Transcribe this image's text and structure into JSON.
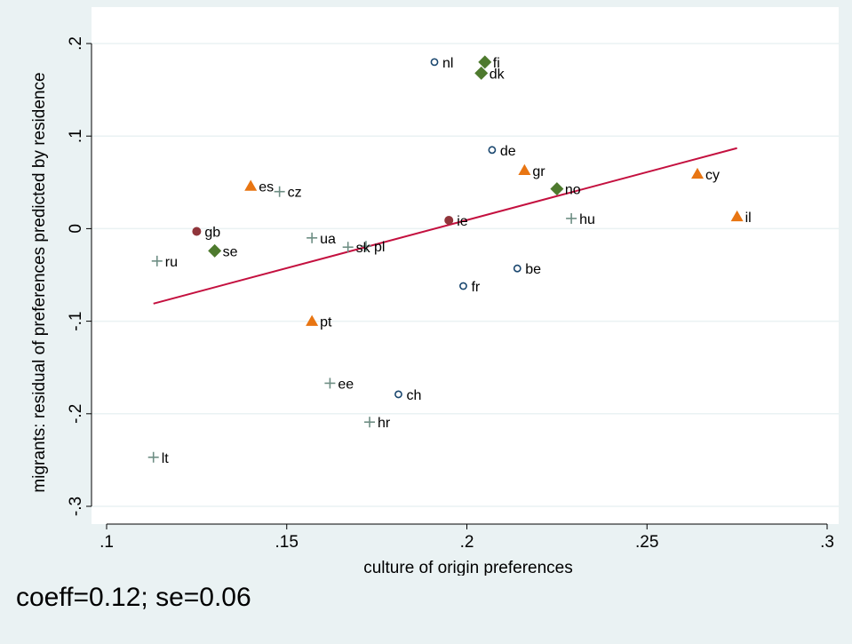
{
  "chart_data": {
    "type": "scatter",
    "xlabel": "culture of origin preferences",
    "ylabel": "migrants: residual of preferences predicted by residence",
    "xlim": [
      0.1,
      0.3
    ],
    "ylim": [
      -0.3,
      0.2
    ],
    "x_ticks": [
      0.1,
      0.15,
      0.2,
      0.25,
      0.3
    ],
    "x_tick_labels": [
      ".1",
      ".15",
      ".2",
      ".25",
      ".3"
    ],
    "y_ticks": [
      -0.3,
      -0.2,
      -0.1,
      0,
      0.1,
      0.2
    ],
    "y_tick_labels": [
      "-.3",
      "-.2",
      "-.1",
      "0",
      ".1",
      ".2"
    ],
    "grid": true,
    "colors": {
      "plot_bg": "#ffffff",
      "outer_bg": "#eaf2f3",
      "grid": "#eaf2f3",
      "fit_line": "#c4103f"
    },
    "series": [
      {
        "marker": "hollow-circle",
        "color": "#1a476f",
        "points": [
          {
            "label": "nl",
            "x": 0.191,
            "y": 0.18
          },
          {
            "label": "de",
            "x": 0.207,
            "y": 0.085
          },
          {
            "label": "be",
            "x": 0.214,
            "y": -0.043
          },
          {
            "label": "fr",
            "x": 0.199,
            "y": -0.062
          },
          {
            "label": "ch",
            "x": 0.181,
            "y": -0.179
          }
        ]
      },
      {
        "marker": "diamond",
        "color": "#4e7a2e",
        "points": [
          {
            "label": "fi",
            "x": 0.205,
            "y": 0.18
          },
          {
            "label": "dk",
            "x": 0.204,
            "y": 0.168
          },
          {
            "label": "no",
            "x": 0.225,
            "y": 0.043
          },
          {
            "label": "se",
            "x": 0.13,
            "y": -0.024
          }
        ]
      },
      {
        "marker": "triangle",
        "color": "#e87512",
        "points": [
          {
            "label": "gr",
            "x": 0.216,
            "y": 0.063
          },
          {
            "label": "cy",
            "x": 0.264,
            "y": 0.059
          },
          {
            "label": "il",
            "x": 0.275,
            "y": 0.013
          },
          {
            "label": "es",
            "x": 0.14,
            "y": 0.046
          },
          {
            "label": "pt",
            "x": 0.157,
            "y": -0.1
          }
        ]
      },
      {
        "marker": "filled-circle",
        "color": "#90353b",
        "points": [
          {
            "label": "gb",
            "x": 0.125,
            "y": -0.003
          },
          {
            "label": "ie",
            "x": 0.195,
            "y": 0.009
          }
        ]
      },
      {
        "marker": "plus",
        "color": "#6e8e84",
        "points": [
          {
            "label": "cz",
            "x": 0.148,
            "y": 0.04
          },
          {
            "label": "hu",
            "x": 0.229,
            "y": 0.011
          },
          {
            "label": "ua",
            "x": 0.157,
            "y": -0.01
          },
          {
            "label": "sk",
            "x": 0.167,
            "y": -0.02
          },
          {
            "label": "pl",
            "x": 0.172,
            "y": -0.019
          },
          {
            "label": "ru",
            "x": 0.114,
            "y": -0.035
          },
          {
            "label": "ee",
            "x": 0.162,
            "y": -0.167
          },
          {
            "label": "hr",
            "x": 0.173,
            "y": -0.209
          },
          {
            "label": "lt",
            "x": 0.113,
            "y": -0.247
          }
        ]
      }
    ],
    "fit_line": {
      "x": [
        0.113,
        0.275
      ],
      "y": [
        -0.081,
        0.087
      ]
    }
  },
  "footnote": "coeff=0.12; se=0.06"
}
